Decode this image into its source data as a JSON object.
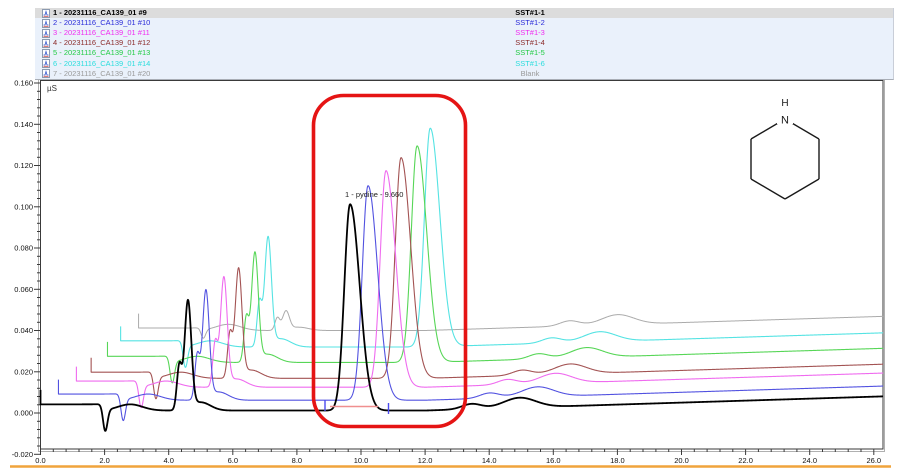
{
  "window": {
    "accent_line_color": "#f0a43c",
    "legend_bg": "#eaf1fb",
    "selected_row_bg": "#dcdcdc"
  },
  "legend": {
    "items": [
      {
        "label": "1 - 20231116_CA139_01 #9",
        "sample": "SST#1-1",
        "color": "#000000",
        "bold": true,
        "selected": true
      },
      {
        "label": "2 - 20231116_CA139_01 #10",
        "sample": "SST#1-2",
        "color": "#2a2ad8",
        "bold": false,
        "selected": false
      },
      {
        "label": "3 - 20231116_CA139_01 #11",
        "sample": "SST#1-3",
        "color": "#f02af0",
        "bold": false,
        "selected": false
      },
      {
        "label": "4 - 20231116_CA139_01 #12",
        "sample": "SST#1-4",
        "color": "#8b2a2a",
        "bold": false,
        "selected": false
      },
      {
        "label": "5 - 20231116_CA139_01 #13",
        "sample": "SST#1-5",
        "color": "#22cc44",
        "bold": false,
        "selected": false
      },
      {
        "label": "6 - 20231116_CA139_01 #14",
        "sample": "SST#1-6",
        "color": "#2adddd",
        "bold": false,
        "selected": false
      },
      {
        "label": "7 - 20231116_CA139_01 #20",
        "sample": "Blank",
        "color": "#9a9a9a",
        "bold": false,
        "selected": false
      }
    ]
  },
  "plot": {
    "unit_label": "µS",
    "peak_label": "1 - pydine - 9.660",
    "annotation": {
      "shape": "rounded-rect",
      "color": "#e51414"
    },
    "molecule_icon": "piperidine-structure-icon",
    "molecule_atom": "N",
    "molecule_hydrogen": "H",
    "integration": {
      "baseline_color": "#f08f8f",
      "delimiter_color": "#4b4bee"
    }
  },
  "chart_data": {
    "type": "line",
    "title": "",
    "xlabel": "",
    "ylabel": "µS",
    "x_axis": {
      "min": 0.0,
      "max": 26.3,
      "major_step": 2.0,
      "minor_step": 0.4,
      "tick_labels": [
        "0.0",
        "2.0",
        "4.0",
        "6.0",
        "8.0",
        "10.0",
        "12.0",
        "14.0",
        "16.0",
        "18.0",
        "20.0",
        "22.0",
        "24.0",
        "26.0"
      ]
    },
    "y_axis": {
      "min": -0.02,
      "max": 0.16,
      "major_step": 0.02,
      "minor_step": 0.004,
      "tick_labels": [
        "0.160",
        "0.140",
        "0.120",
        "0.100",
        "0.080",
        "0.060",
        "0.040",
        "0.020",
        "0.000",
        "-0.020"
      ]
    },
    "grid": false,
    "legend_position": "top",
    "labeled_peak": {
      "series": "1 - 20231116_CA139_01 #9",
      "name": "pydine",
      "retention_time": 9.66,
      "height_uS": 0.1
    },
    "series": [
      {
        "name": "7 - 20231116_CA139_01 #20",
        "sample": "Blank",
        "color": "#ababab",
        "width": 1.0,
        "t0": 3.06,
        "baseline": 0.04,
        "main_peak_time": null,
        "main_peak_height": 0,
        "sys1": 0.006,
        "sys2": 0.009,
        "dip_scale": 0.4
      },
      {
        "name": "6 - 20231116_CA139_01 #14",
        "sample": "SST#1-6",
        "color": "#55e3e3",
        "width": 1.1,
        "t0": 2.5,
        "baseline": 0.032,
        "main_peak_time": 12.16,
        "main_peak_height": 0.106,
        "sys1": 0.021,
        "sys2": 0.052,
        "dip_scale": 1
      },
      {
        "name": "5 - 20231116_CA139_01 #13",
        "sample": "SST#1-5",
        "color": "#57d657",
        "width": 1.1,
        "t0": 2.09,
        "baseline": 0.0245,
        "main_peak_time": 11.75,
        "main_peak_height": 0.105,
        "sys1": 0.021,
        "sys2": 0.052,
        "dip_scale": 1
      },
      {
        "name": "4 - 20231116_CA139_01 #12",
        "sample": "SST#1-4",
        "color": "#a35353",
        "width": 1.1,
        "t0": 1.58,
        "baseline": 0.0168,
        "main_peak_time": 11.25,
        "main_peak_height": 0.107,
        "sys1": 0.021,
        "sys2": 0.052,
        "dip_scale": 1
      },
      {
        "name": "3 - 20231116_CA139_01 #11",
        "sample": "SST#1-3",
        "color": "#ef6bef",
        "width": 1.1,
        "t0": 1.12,
        "baseline": 0.0125,
        "main_peak_time": 10.78,
        "main_peak_height": 0.105,
        "sys1": 0.021,
        "sys2": 0.052,
        "dip_scale": 1
      },
      {
        "name": "2 - 20231116_CA139_01 #10",
        "sample": "SST#1-2",
        "color": "#5252e0",
        "width": 1.1,
        "t0": 0.56,
        "baseline": 0.0062,
        "main_peak_time": 10.22,
        "main_peak_height": 0.104,
        "sys1": 0.021,
        "sys2": 0.052,
        "dip_scale": 1
      },
      {
        "name": "1 - 20231116_CA139_01 #9",
        "sample": "SST#1-1",
        "color": "#000000",
        "width": 1.8,
        "t0": 0.0,
        "baseline": 0.0012,
        "main_peak_time": 9.66,
        "main_peak_height": 0.1,
        "sys1": 0.021,
        "sys2": 0.052,
        "dip_scale": 1
      }
    ]
  }
}
